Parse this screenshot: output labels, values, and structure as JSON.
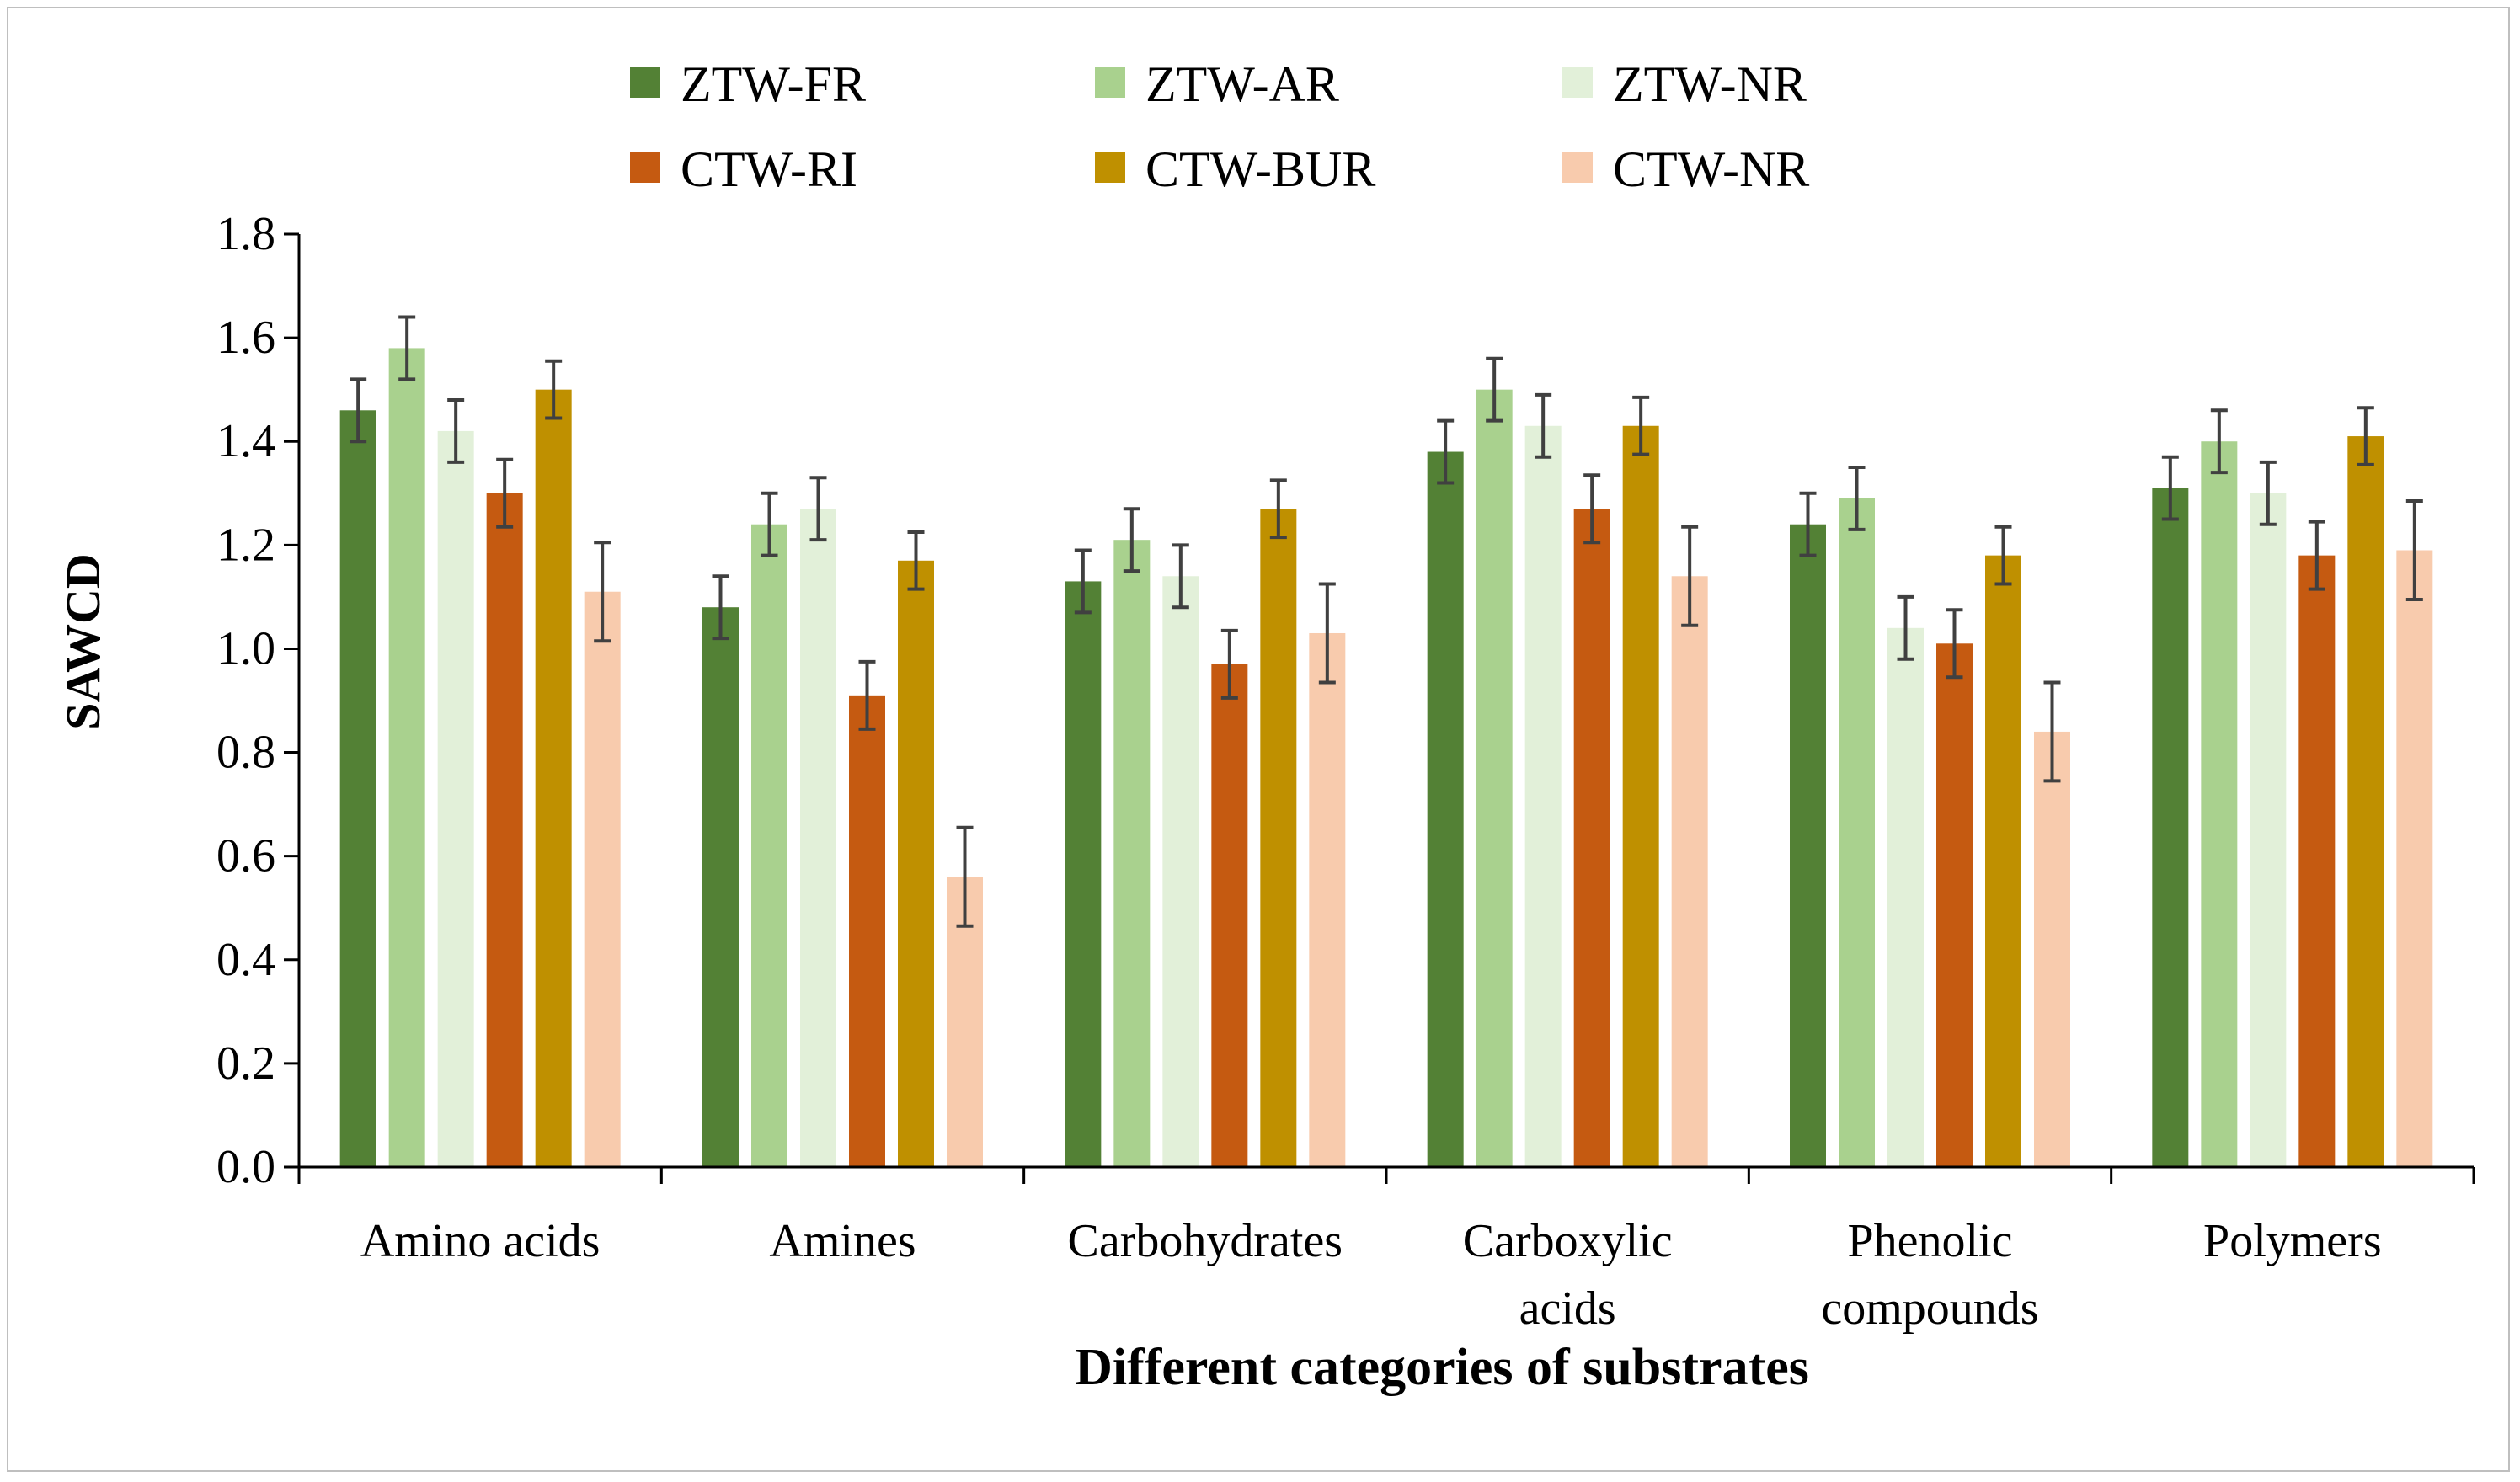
{
  "chart_data": {
    "type": "bar",
    "title": "",
    "xlabel": "Different categories of substrates",
    "ylabel": "SAWCD",
    "ylim": [
      0,
      1.8
    ],
    "yticks": [
      "0.0",
      "0.2",
      "0.4",
      "0.6",
      "0.8",
      "1.0",
      "1.2",
      "1.4",
      "1.6",
      "1.8"
    ],
    "categories": [
      [
        "Amino acids"
      ],
      [
        "Amines"
      ],
      [
        "Carbohydrates"
      ],
      [
        "Carboxylic",
        "acids"
      ],
      [
        "Phenolic",
        "compounds"
      ],
      [
        "Polymers"
      ]
    ],
    "legend_position": "top",
    "series": [
      {
        "name": "ZTW-FR",
        "color": "#538135",
        "values": [
          1.46,
          1.08,
          1.13,
          1.38,
          1.24,
          1.31
        ],
        "errors": [
          0.06,
          0.06,
          0.06,
          0.06,
          0.06,
          0.06
        ]
      },
      {
        "name": "ZTW-AR",
        "color": "#a9d18e",
        "values": [
          1.58,
          1.24,
          1.21,
          1.5,
          1.29,
          1.4
        ],
        "errors": [
          0.06,
          0.06,
          0.06,
          0.06,
          0.06,
          0.06
        ]
      },
      {
        "name": "ZTW-NR",
        "color": "#e2f0d9",
        "values": [
          1.42,
          1.27,
          1.14,
          1.43,
          1.04,
          1.3
        ],
        "errors": [
          0.06,
          0.06,
          0.06,
          0.06,
          0.06,
          0.06
        ]
      },
      {
        "name": "CTW-RI",
        "color": "#c55a11",
        "values": [
          1.3,
          0.91,
          0.97,
          1.27,
          1.01,
          1.18
        ],
        "errors": [
          0.065,
          0.065,
          0.065,
          0.065,
          0.065,
          0.065
        ]
      },
      {
        "name": "CTW-BUR",
        "color": "#bf9000",
        "values": [
          1.5,
          1.17,
          1.27,
          1.43,
          1.18,
          1.41
        ],
        "errors": [
          0.055,
          0.055,
          0.055,
          0.055,
          0.055,
          0.055
        ]
      },
      {
        "name": "CTW-NR",
        "color": "#f8cbad",
        "values": [
          1.11,
          0.56,
          1.03,
          1.14,
          0.84,
          1.19
        ],
        "errors": [
          0.095,
          0.095,
          0.095,
          0.095,
          0.095,
          0.095
        ]
      }
    ]
  }
}
